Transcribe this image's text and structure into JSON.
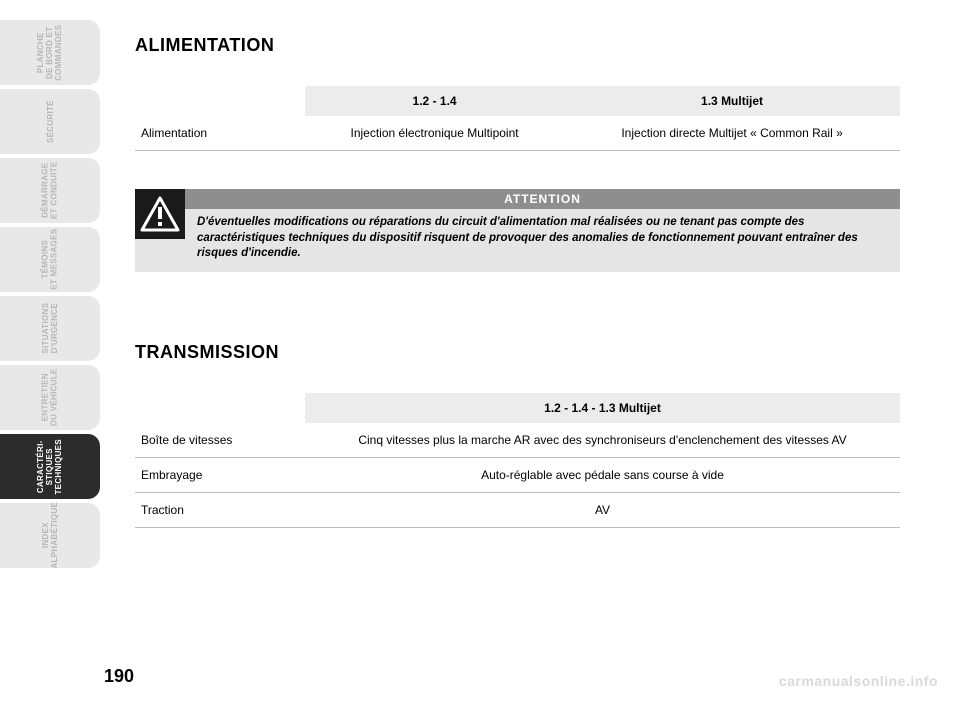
{
  "tabs": [
    {
      "label": "PLANCHE\nDE BORD ET\nCOMMANDES",
      "active": false
    },
    {
      "label": "SÉCURITÉ",
      "active": false
    },
    {
      "label": "DÉMARRAGE\nET CONDUITE",
      "active": false
    },
    {
      "label": "TÉMOINS\nET MESSAGES",
      "active": false
    },
    {
      "label": "SITUATIONS\nD'URGENCE",
      "active": false
    },
    {
      "label": "ENTRETIEN\nDU VÉHICULE",
      "active": false
    },
    {
      "label": "CARACTÉRI-\nSTIQUES\nTECHNIQUES",
      "active": true
    },
    {
      "label": "INDEX\nALPHABÉTIQUE",
      "active": false
    }
  ],
  "section1": {
    "heading": "ALIMENTATION",
    "table": {
      "columns": [
        "",
        "1.2 - 1.4",
        "1.3 Multijet"
      ],
      "colWidths": [
        "170px",
        "auto",
        "auto"
      ],
      "rows": [
        [
          "Alimentation",
          "Injection électronique Multipoint",
          "Injection directe Multijet « Common Rail »"
        ]
      ],
      "headerShadedFrom": 0,
      "bodyShadedCol": 0
    }
  },
  "attention": {
    "bar": "ATTENTION",
    "text": "D'éventuelles modifications ou réparations du circuit d'alimentation mal réalisées ou ne tenant pas compte des caractéristiques techniques du dispositif risquent de provoquer des anomalies de fonctionnement pouvant entraîner des risques d'incendie.",
    "iconName": "warning-triangle-icon"
  },
  "section2": {
    "heading": "TRANSMISSION",
    "table": {
      "columns": [
        "",
        "1.2 - 1.4 - 1.3 Multijet"
      ],
      "colWidths": [
        "170px",
        "auto"
      ],
      "rows": [
        [
          "Boîte de vitesses",
          "Cinq vitesses plus la marche AR avec des synchroniseurs d'enclenchement des vitesses AV"
        ],
        [
          "Embrayage",
          "Auto-réglable avec pédale sans course à vide"
        ],
        [
          "Traction",
          "AV"
        ]
      ],
      "headerShadedFrom": 0,
      "bodyShadedCol": 0
    }
  },
  "pageNumber": "190",
  "watermark": "carmanualsonline.info",
  "colors": {
    "tabInactiveBg": "#e8e8e8",
    "tabInactiveText": "#b6b6b6",
    "tabActiveBg": "#2c2c2c",
    "tabActiveText": "#ffffff",
    "attnBarBg": "#8e8e8e",
    "attnBodyBg": "#e5e5e5",
    "attnIconBg": "#1a1a1a",
    "tableShade": "#ececec",
    "rowBorder": "#bdbdbd",
    "watermark": "#d9d9d9"
  },
  "fontSizes": {
    "heading": 18,
    "body": 12,
    "tabLabel": 8,
    "attnText": 11.5,
    "pageNumber": 18,
    "watermark": 14
  }
}
